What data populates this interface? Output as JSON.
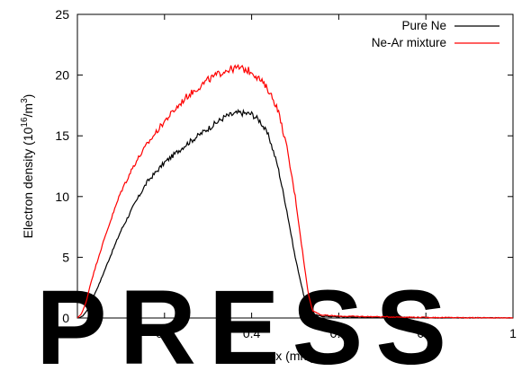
{
  "chart_data": {
    "type": "line",
    "xlabel": "x (mm)",
    "ylabel": "Electron density (10",
    "ylabel_sup": "16",
    "ylabel_tail": "/m",
    "ylabel_sup2": "3",
    "ylabel_end": ")",
    "xlim": [
      0,
      1
    ],
    "ylim": [
      0,
      25
    ],
    "x_ticks": [
      0,
      0.2,
      0.4,
      0.6,
      0.8,
      1
    ],
    "x_tick_labels": [
      "0",
      "0.2",
      "0.4",
      "0.6",
      "0.8",
      "1"
    ],
    "y_ticks": [
      0,
      5,
      10,
      15,
      20,
      25
    ],
    "y_tick_labels": [
      "0",
      "5",
      "10",
      "15",
      "20",
      "25"
    ],
    "grid": false,
    "legend_position": "top-right",
    "series": [
      {
        "name": "Pure Ne",
        "color": "#000000",
        "x": [
          0,
          0.01,
          0.02,
          0.03,
          0.05,
          0.07,
          0.1,
          0.13,
          0.16,
          0.2,
          0.25,
          0.3,
          0.34,
          0.37,
          0.4,
          0.42,
          0.44,
          0.46,
          0.48,
          0.5,
          0.52,
          0.53,
          0.54,
          0.56,
          0.6,
          0.7,
          0.8,
          0.9,
          1.0
        ],
        "values": [
          0,
          0.1,
          0.5,
          1.2,
          2.8,
          4.6,
          7.2,
          9.3,
          11.2,
          12.8,
          14.3,
          15.6,
          16.6,
          16.9,
          16.8,
          16.2,
          14.9,
          12.5,
          9.0,
          5.0,
          1.8,
          0.7,
          0.3,
          0.15,
          0.1,
          0.05,
          0.02,
          0.01,
          0.0
        ]
      },
      {
        "name": "Ne-Ar mixture",
        "color": "#ff0000",
        "x": [
          0,
          0.01,
          0.02,
          0.03,
          0.05,
          0.07,
          0.1,
          0.13,
          0.16,
          0.2,
          0.25,
          0.3,
          0.34,
          0.37,
          0.4,
          0.42,
          0.44,
          0.46,
          0.48,
          0.5,
          0.52,
          0.53,
          0.54,
          0.56,
          0.6,
          0.7,
          0.8,
          0.9,
          1.0
        ],
        "values": [
          0,
          0.4,
          1.3,
          2.8,
          5.2,
          7.4,
          10.4,
          12.6,
          14.3,
          16.2,
          18.2,
          19.6,
          20.4,
          20.6,
          20.3,
          19.6,
          18.7,
          17.2,
          14.2,
          10.0,
          4.6,
          2.0,
          0.6,
          0.25,
          0.15,
          0.1,
          0.05,
          0.02,
          0.0
        ]
      }
    ]
  },
  "watermark": {
    "text": "PRESS"
  }
}
